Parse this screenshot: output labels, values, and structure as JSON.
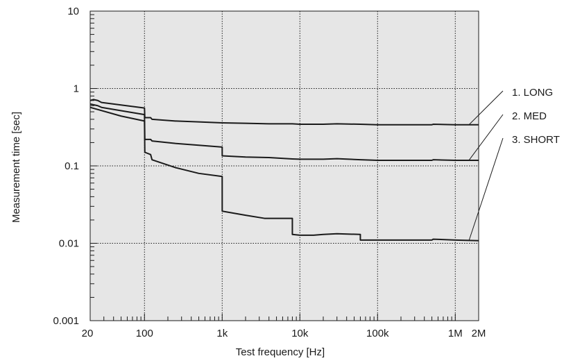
{
  "chart_data": {
    "type": "line",
    "title": "",
    "xlabel": "Test frequency [Hz]",
    "ylabel": "Measurement time [sec]",
    "x_scale": "log",
    "y_scale": "log",
    "xlim": [
      20,
      2000000
    ],
    "ylim": [
      0.001,
      10
    ],
    "grid": true,
    "plot_background": "#e6e6e6",
    "line_color": "#1a1a1a",
    "x_ticks": [
      {
        "value": 20,
        "label": "20"
      },
      {
        "value": 100,
        "label": "100"
      },
      {
        "value": 1000,
        "label": "1k"
      },
      {
        "value": 10000,
        "label": "10k"
      },
      {
        "value": 100000,
        "label": "100k"
      },
      {
        "value": 1000000,
        "label": "1M"
      },
      {
        "value": 2000000,
        "label": "2M"
      }
    ],
    "y_ticks": [
      {
        "value": 10,
        "label": "10"
      },
      {
        "value": 1,
        "label": "1"
      },
      {
        "value": 0.1,
        "label": "0.1"
      },
      {
        "value": 0.01,
        "label": "0.01"
      },
      {
        "value": 0.001,
        "label": "0.001"
      }
    ],
    "series": [
      {
        "name": "1. LONG",
        "points": [
          [
            20,
            0.7
          ],
          [
            22,
            0.72
          ],
          [
            25,
            0.7
          ],
          [
            28,
            0.66
          ],
          [
            100,
            0.56
          ],
          [
            101,
            0.42
          ],
          [
            120,
            0.42
          ],
          [
            125,
            0.4
          ],
          [
            250,
            0.38
          ],
          [
            500,
            0.37
          ],
          [
            1000,
            0.36
          ],
          [
            2000,
            0.355
          ],
          [
            4000,
            0.35
          ],
          [
            8000,
            0.35
          ],
          [
            10000,
            0.345
          ],
          [
            20000,
            0.345
          ],
          [
            30000,
            0.35
          ],
          [
            60000,
            0.345
          ],
          [
            100000,
            0.34
          ],
          [
            500000,
            0.34
          ],
          [
            520000,
            0.345
          ],
          [
            1000000,
            0.34
          ],
          [
            2000000,
            0.34
          ]
        ]
      },
      {
        "name": "2. MED",
        "points": [
          [
            20,
            0.63
          ],
          [
            25,
            0.6
          ],
          [
            28,
            0.57
          ],
          [
            100,
            0.46
          ],
          [
            101,
            0.22
          ],
          [
            120,
            0.22
          ],
          [
            125,
            0.21
          ],
          [
            250,
            0.195
          ],
          [
            500,
            0.185
          ],
          [
            1000,
            0.175
          ],
          [
            1001,
            0.135
          ],
          [
            2000,
            0.13
          ],
          [
            4000,
            0.128
          ],
          [
            8000,
            0.123
          ],
          [
            10000,
            0.122
          ],
          [
            20000,
            0.122
          ],
          [
            30000,
            0.124
          ],
          [
            60000,
            0.12
          ],
          [
            100000,
            0.118
          ],
          [
            500000,
            0.118
          ],
          [
            520000,
            0.12
          ],
          [
            1000000,
            0.118
          ],
          [
            2000000,
            0.118
          ]
        ]
      },
      {
        "name": "3. SHORT",
        "points": [
          [
            20,
            0.57
          ],
          [
            50,
            0.44
          ],
          [
            100,
            0.38
          ],
          [
            101,
            0.15
          ],
          [
            120,
            0.14
          ],
          [
            125,
            0.12
          ],
          [
            250,
            0.095
          ],
          [
            500,
            0.08
          ],
          [
            1000,
            0.073
          ],
          [
            1001,
            0.026
          ],
          [
            2000,
            0.023
          ],
          [
            3500,
            0.021
          ],
          [
            8000,
            0.021
          ],
          [
            8001,
            0.013
          ],
          [
            10000,
            0.0127
          ],
          [
            15000,
            0.0127
          ],
          [
            20000,
            0.013
          ],
          [
            30000,
            0.0133
          ],
          [
            60000,
            0.013
          ],
          [
            60001,
            0.011
          ],
          [
            100000,
            0.011
          ],
          [
            500000,
            0.011
          ],
          [
            520000,
            0.0113
          ],
          [
            1000000,
            0.011
          ],
          [
            2000000,
            0.0108
          ]
        ]
      }
    ],
    "legend_placement": "right, labels with leader lines to each curve"
  }
}
